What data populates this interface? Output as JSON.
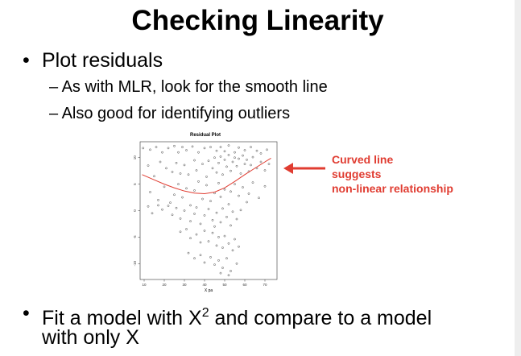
{
  "slide": {
    "title": "Checking Linearity",
    "bullet_glyph": "•",
    "bullets": [
      {
        "text": "Plot residuals",
        "subs": [
          "– As with MLR, look for the smooth line",
          "– Also good for identifying outliers"
        ]
      }
    ],
    "bullet2": {
      "part1": "Fit a model with X",
      "sup": "2",
      "part2": " and compare to a model",
      "line2": "with only X"
    }
  },
  "annotation": {
    "lines": [
      "Curved line",
      "suggests",
      "non-linear relationship"
    ],
    "color": "#e03c31",
    "arrow_icon": "arrow-left-icon"
  },
  "chart_data": {
    "type": "scatter",
    "title": "Residual Plot",
    "xlabel": "X pa",
    "ylabel": "",
    "xlim": [
      8,
      76
    ],
    "ylim": [
      -13,
      13
    ],
    "xticks": [
      "10",
      "20",
      "30",
      "40",
      "50",
      "60",
      "70"
    ],
    "xtick_values": [
      10,
      20,
      30,
      40,
      50,
      60,
      70
    ],
    "yticks": [
      "-10",
      "-5",
      "0",
      "5",
      "10"
    ],
    "ytick_values": [
      -10,
      -5,
      0,
      5,
      10
    ],
    "points": [
      [
        9.5,
        11.8
      ],
      [
        13,
        11.5
      ],
      [
        16,
        12.0
      ],
      [
        19,
        11.0
      ],
      [
        22,
        11.8
      ],
      [
        25,
        12.2
      ],
      [
        27,
        11.0
      ],
      [
        29,
        12.0
      ],
      [
        31,
        11.4
      ],
      [
        34,
        12.1
      ],
      [
        37,
        11.0
      ],
      [
        40,
        11.8
      ],
      [
        43,
        12.0
      ],
      [
        46,
        11.3
      ],
      [
        48,
        12.0
      ],
      [
        50,
        11.2
      ],
      [
        52,
        12.3
      ],
      [
        55,
        11.0
      ],
      [
        57,
        11.9
      ],
      [
        60,
        11.4
      ],
      [
        63,
        12.0
      ],
      [
        66,
        11.3
      ],
      [
        68,
        10.8
      ],
      [
        71,
        11.5
      ],
      [
        12,
        8.5
      ],
      [
        15,
        6.5
      ],
      [
        18,
        9.2
      ],
      [
        21,
        8.0
      ],
      [
        24,
        7.3
      ],
      [
        26,
        9.0
      ],
      [
        28,
        7.0
      ],
      [
        30,
        8.6
      ],
      [
        32,
        6.8
      ],
      [
        35,
        9.5
      ],
      [
        36,
        7.6
      ],
      [
        39,
        8.8
      ],
      [
        41,
        6.4
      ],
      [
        42,
        9.4
      ],
      [
        44,
        8.0
      ],
      [
        45,
        10.0
      ],
      [
        46,
        7.2
      ],
      [
        47,
        9.0
      ],
      [
        48,
        10.2
      ],
      [
        49,
        6.8
      ],
      [
        50,
        9.6
      ],
      [
        51,
        8.3
      ],
      [
        52,
        10.5
      ],
      [
        53,
        7.5
      ],
      [
        54,
        9.2
      ],
      [
        55,
        10.0
      ],
      [
        56,
        8.4
      ],
      [
        57,
        9.8
      ],
      [
        58,
        7.0
      ],
      [
        59,
        10.4
      ],
      [
        60,
        8.8
      ],
      [
        61,
        9.6
      ],
      [
        62,
        7.4
      ],
      [
        63,
        8.6
      ],
      [
        64,
        10.1
      ],
      [
        66,
        8.0
      ],
      [
        68,
        9.2
      ],
      [
        70,
        7.6
      ],
      [
        72,
        8.8
      ],
      [
        13,
        3.5
      ],
      [
        17,
        2.0
      ],
      [
        20,
        4.5
      ],
      [
        23,
        1.5
      ],
      [
        25,
        3.0
      ],
      [
        27,
        5.0
      ],
      [
        29,
        2.5
      ],
      [
        31,
        4.2
      ],
      [
        33,
        1.0
      ],
      [
        35,
        3.8
      ],
      [
        37,
        5.5
      ],
      [
        39,
        2.2
      ],
      [
        41,
        4.8
      ],
      [
        43,
        1.8
      ],
      [
        45,
        3.3
      ],
      [
        47,
        5.2
      ],
      [
        48,
        2.6
      ],
      [
        50,
        4.0
      ],
      [
        52,
        1.2
      ],
      [
        53,
        3.6
      ],
      [
        55,
        5.0
      ],
      [
        57,
        2.8
      ],
      [
        59,
        4.4
      ],
      [
        61,
        1.6
      ],
      [
        62,
        3.2
      ],
      [
        64,
        5.3
      ],
      [
        67,
        2.4
      ],
      [
        70,
        4.6
      ],
      [
        12,
        0.8
      ],
      [
        14,
        -0.5
      ],
      [
        17,
        1.0
      ],
      [
        19,
        0.2
      ],
      [
        22,
        0.9
      ],
      [
        24,
        -0.8
      ],
      [
        26,
        0.5
      ],
      [
        28,
        -1.5
      ],
      [
        30,
        0.0
      ],
      [
        33,
        -2.0
      ],
      [
        35,
        -0.6
      ],
      [
        36,
        0.6
      ],
      [
        38,
        -2.5
      ],
      [
        40,
        -0.9
      ],
      [
        42,
        0.3
      ],
      [
        44,
        -1.8
      ],
      [
        45,
        -3.0
      ],
      [
        46,
        -0.4
      ],
      [
        48,
        -2.2
      ],
      [
        49,
        0.4
      ],
      [
        51,
        -1.2
      ],
      [
        53,
        -2.8
      ],
      [
        54,
        -0.2
      ],
      [
        56,
        -1.6
      ],
      [
        58,
        0.1
      ],
      [
        28,
        -4.0
      ],
      [
        31,
        -3.5
      ],
      [
        33,
        -5.2
      ],
      [
        36,
        -4.5
      ],
      [
        38,
        -6.0
      ],
      [
        40,
        -3.8
      ],
      [
        42,
        -5.8
      ],
      [
        44,
        -4.2
      ],
      [
        46,
        -6.6
      ],
      [
        47,
        -5.0
      ],
      [
        49,
        -7.0
      ],
      [
        50,
        -4.8
      ],
      [
        52,
        -6.2
      ],
      [
        54,
        -7.5
      ],
      [
        55,
        -5.4
      ],
      [
        57,
        -6.8
      ],
      [
        32,
        -8.0
      ],
      [
        35,
        -9.0
      ],
      [
        38,
        -8.4
      ],
      [
        40,
        -9.8
      ],
      [
        43,
        -8.8
      ],
      [
        45,
        -10.2
      ],
      [
        47,
        -9.4
      ],
      [
        49,
        -10.8
      ],
      [
        51,
        -9.0
      ],
      [
        53,
        -11.4
      ],
      [
        56,
        -10.0
      ],
      [
        52,
        -12.2
      ],
      [
        48,
        -11.8
      ]
    ],
    "smooth_line": {
      "color": "#e03c31",
      "x": [
        9,
        15,
        20,
        25,
        30,
        35,
        40,
        45,
        50,
        55,
        60,
        65,
        70,
        73
      ],
      "y": [
        6.8,
        5.8,
        5.0,
        4.3,
        3.7,
        3.3,
        3.2,
        3.5,
        4.3,
        5.5,
        6.8,
        8.0,
        9.2,
        9.9
      ]
    }
  }
}
